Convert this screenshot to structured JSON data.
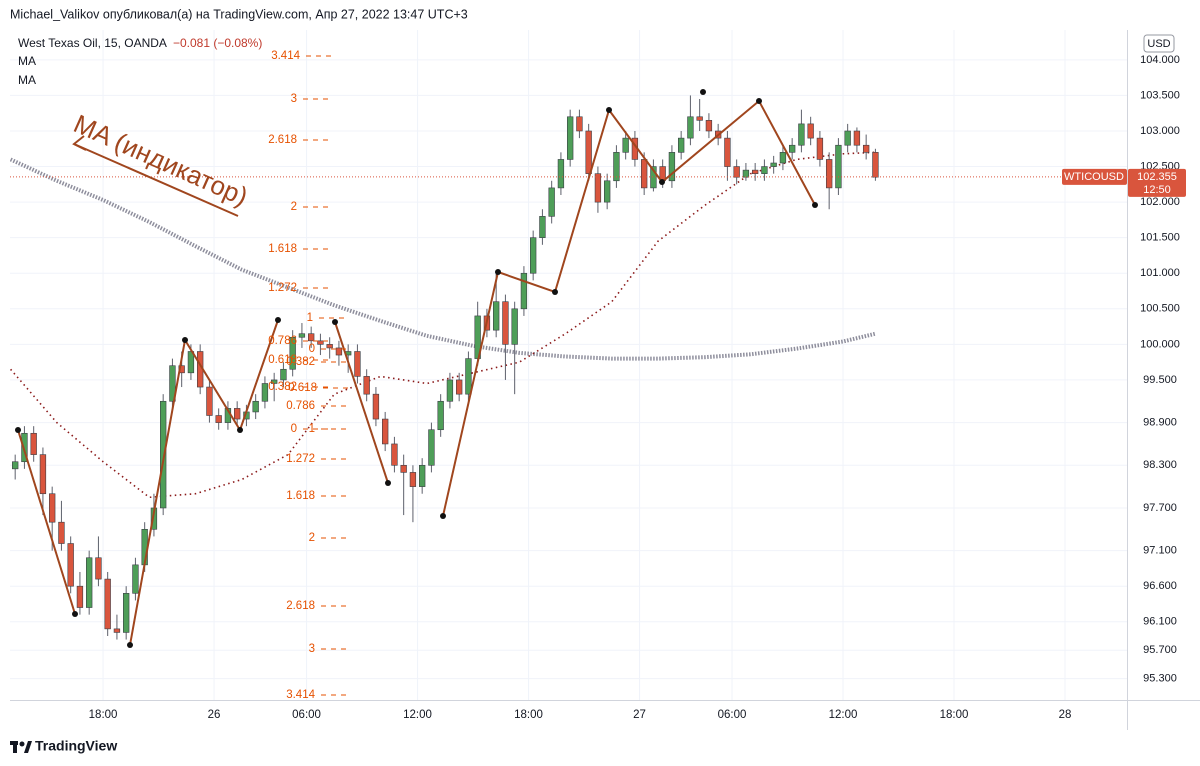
{
  "header": {
    "text": "Michael_Valikov опубликовал(а) на TradingView.com, Апр 27, 2022 13:47 UTC+3"
  },
  "chart_data": {
    "type": "candlestick",
    "title": "West Texas Oil, 15, OANDA",
    "change_label": "−0.081 (−0.08%)",
    "currency": "USD",
    "symbol": "WTICOUSD",
    "last_price": 102.355,
    "countdown": "12:50",
    "annotation": "MA (индикатор)",
    "up_color": "#4e9e58",
    "down_color": "#d9553d",
    "xlim": [
      -5.03,
      55.35
    ],
    "xticks": [
      {
        "value": 0,
        "label": "18:00"
      },
      {
        "value": 6,
        "label": "26"
      },
      {
        "value": 11,
        "label": "06:00"
      },
      {
        "value": 17,
        "label": "12:00"
      },
      {
        "value": 23,
        "label": "18:00"
      },
      {
        "value": 29,
        "label": "27"
      },
      {
        "value": 34,
        "label": "06:00"
      },
      {
        "value": 40,
        "label": "12:00"
      },
      {
        "value": 46,
        "label": "18:00"
      },
      {
        "value": 52,
        "label": "28"
      }
    ],
    "ylim": [
      95.0,
      104.42
    ],
    "yticks": [
      {
        "value": 104,
        "label": "104.000"
      },
      {
        "value": 103.5,
        "label": "103.500"
      },
      {
        "value": 103,
        "label": "103.000"
      },
      {
        "value": 102.5,
        "label": "102.500"
      },
      {
        "value": 102,
        "label": "102.000"
      },
      {
        "value": 101.5,
        "label": "101.500"
      },
      {
        "value": 101,
        "label": "101.000"
      },
      {
        "value": 100.5,
        "label": "100.500"
      },
      {
        "value": 100,
        "label": "100.000"
      },
      {
        "value": 99.5,
        "label": "99.500"
      },
      {
        "value": 98.9,
        "label": "98.900"
      },
      {
        "value": 98.3,
        "label": "98.300"
      },
      {
        "value": 97.7,
        "label": "97.700"
      },
      {
        "value": 97.1,
        "label": "97.100"
      },
      {
        "value": 96.6,
        "label": "96.600"
      },
      {
        "value": 96.1,
        "label": "96.100"
      },
      {
        "value": 95.7,
        "label": "95.700"
      },
      {
        "value": 95.3,
        "label": "95.300"
      }
    ],
    "grid": true,
    "x": [
      -4.75,
      -4.25,
      -3.75,
      -3.25,
      -2.75,
      -2.25,
      -1.75,
      -1.25,
      -0.75,
      -0.25,
      0.25,
      0.75,
      1.25,
      1.75,
      2.25,
      2.75,
      3.25,
      3.75,
      4.25,
      4.75,
      5.25,
      5.75,
      6.25,
      6.75,
      7.25,
      7.75,
      8.25,
      8.75,
      9.25,
      9.75,
      10.25,
      10.75,
      11.25,
      11.75,
      12.25,
      12.75,
      13.25,
      13.75,
      14.25,
      14.75,
      15.25,
      15.75,
      16.25,
      16.75,
      17.25,
      17.75,
      18.25,
      18.75,
      19.25,
      19.75,
      20.25,
      20.75,
      21.25,
      21.75,
      22.25,
      22.75,
      23.25,
      23.75,
      24.25,
      24.75,
      25.25,
      25.75,
      26.25,
      26.75,
      27.25,
      27.75,
      28.25,
      28.75,
      29.25,
      29.75,
      30.25,
      30.75,
      31.25,
      31.75,
      32.25,
      32.75,
      33.25,
      33.75,
      34.25,
      34.75,
      35.25,
      35.75,
      36.25,
      36.75,
      37.25,
      37.75,
      38.25,
      38.75,
      39.25,
      39.75,
      40.25,
      40.75,
      41.25,
      41.75
    ],
    "candles": [
      [
        98.25,
        98.45,
        98.1,
        98.35
      ],
      [
        98.35,
        98.85,
        98.25,
        98.75
      ],
      [
        98.75,
        98.85,
        98.35,
        98.45
      ],
      [
        98.45,
        98.55,
        97.6,
        97.9
      ],
      [
        97.9,
        98.0,
        97.1,
        97.5
      ],
      [
        97.5,
        97.8,
        97.1,
        97.2
      ],
      [
        97.2,
        97.3,
        96.5,
        96.6
      ],
      [
        96.6,
        96.8,
        96.2,
        96.3
      ],
      [
        96.3,
        97.1,
        96.2,
        97.0
      ],
      [
        97.0,
        97.3,
        96.6,
        96.7
      ],
      [
        96.7,
        96.8,
        95.9,
        96.0
      ],
      [
        96.0,
        96.2,
        95.85,
        95.95
      ],
      [
        95.95,
        96.6,
        95.85,
        96.5
      ],
      [
        96.5,
        97.0,
        96.4,
        96.9
      ],
      [
        96.9,
        97.5,
        96.8,
        97.4
      ],
      [
        97.4,
        97.9,
        97.3,
        97.7
      ],
      [
        97.7,
        99.3,
        97.6,
        99.2
      ],
      [
        99.2,
        99.8,
        99.1,
        99.7
      ],
      [
        99.7,
        99.9,
        99.4,
        99.6
      ],
      [
        99.6,
        100.0,
        99.5,
        99.9
      ],
      [
        99.9,
        100.0,
        99.3,
        99.4
      ],
      [
        99.4,
        99.5,
        98.9,
        99.0
      ],
      [
        99.0,
        99.1,
        98.8,
        98.9
      ],
      [
        98.9,
        99.2,
        98.8,
        99.1
      ],
      [
        99.1,
        99.2,
        98.85,
        98.95
      ],
      [
        98.95,
        99.15,
        98.85,
        99.05
      ],
      [
        99.05,
        99.3,
        98.95,
        99.2
      ],
      [
        99.2,
        99.55,
        99.1,
        99.45
      ],
      [
        99.45,
        99.6,
        99.2,
        99.5
      ],
      [
        99.5,
        99.75,
        99.4,
        99.65
      ],
      [
        99.65,
        100.2,
        99.55,
        100.1
      ],
      [
        100.1,
        100.3,
        99.95,
        100.15
      ],
      [
        100.15,
        100.25,
        99.95,
        100.05
      ],
      [
        100.05,
        100.15,
        99.85,
        100.0
      ],
      [
        100.0,
        100.1,
        99.8,
        99.95
      ],
      [
        99.95,
        100.05,
        99.7,
        99.85
      ],
      [
        99.85,
        100.0,
        99.6,
        99.9
      ],
      [
        99.9,
        100.0,
        99.45,
        99.55
      ],
      [
        99.55,
        99.65,
        99.2,
        99.3
      ],
      [
        99.3,
        99.4,
        98.85,
        98.95
      ],
      [
        98.95,
        99.05,
        98.5,
        98.6
      ],
      [
        98.6,
        98.7,
        98.2,
        98.3
      ],
      [
        98.3,
        98.45,
        97.6,
        98.2
      ],
      [
        98.2,
        98.3,
        97.5,
        98.0
      ],
      [
        98.0,
        98.4,
        97.9,
        98.3
      ],
      [
        98.3,
        98.9,
        98.2,
        98.8
      ],
      [
        98.8,
        99.3,
        98.7,
        99.2
      ],
      [
        99.2,
        99.6,
        99.1,
        99.5
      ],
      [
        99.5,
        99.6,
        99.2,
        99.3
      ],
      [
        99.3,
        99.9,
        99.2,
        99.8
      ],
      [
        99.8,
        100.6,
        99.7,
        100.4
      ],
      [
        100.4,
        100.5,
        100.1,
        100.2
      ],
      [
        100.2,
        101.0,
        100.1,
        100.6
      ],
      [
        100.6,
        100.7,
        99.5,
        100.0
      ],
      [
        100.0,
        100.6,
        99.3,
        100.5
      ],
      [
        100.5,
        101.1,
        100.4,
        101.0
      ],
      [
        101.0,
        101.6,
        100.9,
        101.5
      ],
      [
        101.5,
        101.9,
        101.4,
        101.8
      ],
      [
        101.8,
        102.3,
        101.7,
        102.2
      ],
      [
        102.2,
        102.7,
        102.1,
        102.6
      ],
      [
        102.6,
        103.3,
        102.5,
        103.2
      ],
      [
        103.2,
        103.3,
        102.9,
        103.0
      ],
      [
        103.0,
        103.1,
        102.3,
        102.4
      ],
      [
        102.4,
        102.5,
        101.85,
        102.0
      ],
      [
        102.0,
        102.4,
        101.9,
        102.3
      ],
      [
        102.3,
        102.8,
        102.2,
        102.7
      ],
      [
        102.7,
        103.0,
        102.6,
        102.9
      ],
      [
        102.9,
        103.0,
        102.5,
        102.6
      ],
      [
        102.6,
        102.7,
        102.1,
        102.2
      ],
      [
        102.2,
        102.6,
        102.15,
        102.5
      ],
      [
        102.5,
        102.6,
        102.2,
        102.3
      ],
      [
        102.3,
        102.8,
        102.2,
        102.7
      ],
      [
        102.7,
        103.0,
        102.6,
        102.9
      ],
      [
        102.9,
        103.5,
        102.8,
        103.2
      ],
      [
        103.2,
        103.45,
        103.0,
        103.15
      ],
      [
        103.15,
        103.25,
        102.9,
        103.0
      ],
      [
        103.0,
        103.1,
        102.8,
        102.9
      ],
      [
        102.9,
        103.0,
        102.3,
        102.5
      ],
      [
        102.5,
        102.6,
        102.25,
        102.35
      ],
      [
        102.35,
        102.55,
        102.3,
        102.45
      ],
      [
        102.45,
        102.55,
        102.3,
        102.4
      ],
      [
        102.4,
        102.6,
        102.3,
        102.5
      ],
      [
        102.5,
        102.65,
        102.4,
        102.55
      ],
      [
        102.55,
        102.8,
        102.45,
        102.7
      ],
      [
        102.7,
        102.9,
        102.6,
        102.8
      ],
      [
        102.8,
        103.3,
        102.7,
        103.1
      ],
      [
        103.1,
        103.2,
        102.8,
        102.9
      ],
      [
        102.9,
        103.0,
        102.5,
        102.6
      ],
      [
        102.6,
        102.7,
        101.9,
        102.2
      ],
      [
        102.2,
        102.9,
        102.1,
        102.8
      ],
      [
        102.8,
        103.1,
        102.7,
        103.0
      ],
      [
        103.0,
        103.05,
        102.7,
        102.8
      ],
      [
        102.8,
        102.95,
        102.6,
        102.7
      ],
      [
        102.7,
        102.75,
        102.3,
        102.35
      ]
    ],
    "series": [
      {
        "name": "MA",
        "color": "#8e8e9c",
        "x": [
          -5,
          -2.5,
          0,
          2.5,
          5,
          7.5,
          10,
          12.5,
          15,
          17.5,
          20,
          22.5,
          25,
          27.5,
          30,
          32.5,
          35,
          37.5,
          40,
          41.75
        ],
        "values": [
          102.6,
          102.3,
          102.03,
          101.72,
          101.38,
          101.05,
          100.8,
          100.55,
          100.33,
          100.12,
          99.98,
          99.88,
          99.83,
          99.8,
          99.8,
          99.82,
          99.86,
          99.94,
          100.04,
          100.15
        ]
      },
      {
        "name": "MA",
        "color": "#8b1a1a",
        "x": [
          -5,
          -2.5,
          0,
          2.5,
          5,
          7.5,
          10,
          12.5,
          15,
          17.5,
          20,
          22.5,
          25,
          27.5,
          30,
          32.5,
          35,
          37.5,
          40,
          41.75
        ],
        "values": [
          99.65,
          98.9,
          98.35,
          97.85,
          97.9,
          98.1,
          98.45,
          99.3,
          99.55,
          99.45,
          99.6,
          99.75,
          100.15,
          100.6,
          101.45,
          101.95,
          102.4,
          102.6,
          102.68,
          102.7
        ]
      }
    ],
    "fib_labels": [
      "3.414",
      "3",
      "2.618",
      "2",
      "1.618",
      "1.272",
      "1",
      "0.786",
      "0",
      "0.618",
      "0.382",
      "0.382",
      "0.618",
      "0.786",
      "0",
      "1",
      "1.272",
      "1.618",
      "2",
      "2.618",
      "3",
      "3.414"
    ]
  },
  "footer": {
    "brand": "TradingView"
  }
}
